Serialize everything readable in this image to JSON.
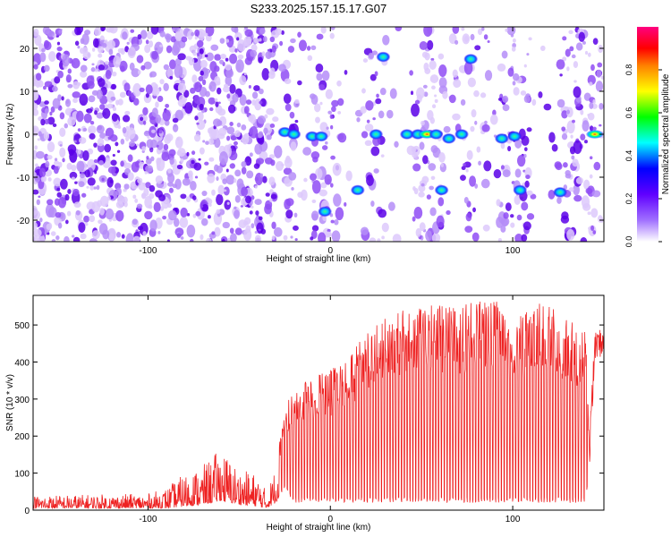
{
  "chart_data": [
    {
      "type": "heatmap",
      "title": "S233.2025.157.15.17.G07",
      "xlabel": "Height of straight line (km)",
      "ylabel": "Frequency (Hz)",
      "xlim": [
        -163,
        150
      ],
      "ylim": [
        -25,
        25
      ],
      "x_ticks": [
        -100,
        0,
        100
      ],
      "y_ticks": [
        -20,
        -10,
        0,
        10,
        20
      ],
      "colorbar": {
        "label": "Normalized spectral amplitude",
        "range": [
          0.0,
          1.0
        ],
        "ticks": [
          "0.0",
          "0.2",
          "0.4",
          "0.6",
          "0.8"
        ],
        "colors": [
          "#ffffff",
          "#8a2be2",
          "#0000ff",
          "#00ffff",
          "#00ff00",
          "#ffff00",
          "#ff0000",
          "#ff0080"
        ]
      },
      "strong_features": [
        {
          "x": -25,
          "y": 0.5,
          "amp": 0.3
        },
        {
          "x": -20,
          "y": 0,
          "amp": 0.25
        },
        {
          "x": -10,
          "y": -0.5,
          "amp": 0.25
        },
        {
          "x": -5,
          "y": -0.5,
          "amp": 0.25
        },
        {
          "x": -3,
          "y": -18,
          "amp": 0.22
        },
        {
          "x": 15,
          "y": -13,
          "amp": 0.2
        },
        {
          "x": 25,
          "y": 0,
          "amp": 0.35
        },
        {
          "x": 29,
          "y": 18,
          "amp": 0.3
        },
        {
          "x": 42,
          "y": 0,
          "amp": 0.3
        },
        {
          "x": 48,
          "y": 0,
          "amp": 0.3
        },
        {
          "x": 53,
          "y": 0,
          "amp": 0.9
        },
        {
          "x": 58,
          "y": 0,
          "amp": 0.3
        },
        {
          "x": 61,
          "y": -13,
          "amp": 0.22
        },
        {
          "x": 65,
          "y": -1,
          "amp": 0.25
        },
        {
          "x": 72,
          "y": 0,
          "amp": 0.3
        },
        {
          "x": 77,
          "y": 17.5,
          "amp": 0.32
        },
        {
          "x": 94,
          "y": -1,
          "amp": 0.28
        },
        {
          "x": 101,
          "y": -0.5,
          "amp": 0.3
        },
        {
          "x": 104,
          "y": -13,
          "amp": 0.22
        },
        {
          "x": 126,
          "y": -13.5,
          "amp": 0.22
        },
        {
          "x": 145,
          "y": 0,
          "amp": 0.95
        }
      ]
    },
    {
      "type": "line",
      "xlabel": "Height of straight line (km)",
      "ylabel": "SNR (10 * v/v)",
      "xlim": [
        -163,
        150
      ],
      "ylim": [
        0,
        580
      ],
      "x_ticks": [
        -100,
        0,
        100
      ],
      "y_ticks": [
        0,
        100,
        200,
        300,
        400,
        500
      ],
      "series": [
        {
          "color": "#ee2222",
          "envelope": [
            {
              "x": -163,
              "low": 5,
              "high": 40
            },
            {
              "x": -100,
              "low": 5,
              "high": 45
            },
            {
              "x": -90,
              "low": 5,
              "high": 60
            },
            {
              "x": -80,
              "low": 10,
              "high": 100
            },
            {
              "x": -70,
              "low": 15,
              "high": 120
            },
            {
              "x": -60,
              "low": 25,
              "high": 170
            },
            {
              "x": -50,
              "low": 15,
              "high": 110
            },
            {
              "x": -40,
              "low": 10,
              "high": 100
            },
            {
              "x": -35,
              "low": 5,
              "high": 50
            },
            {
              "x": -30,
              "low": 20,
              "high": 120
            },
            {
              "x": -25,
              "low": 60,
              "high": 280
            },
            {
              "x": -20,
              "low": 20,
              "high": 330
            },
            {
              "x": -10,
              "low": 20,
              "high": 360
            },
            {
              "x": 0,
              "low": 20,
              "high": 380
            },
            {
              "x": 10,
              "low": 20,
              "high": 420
            },
            {
              "x": 20,
              "low": 20,
              "high": 480
            },
            {
              "x": 30,
              "low": 20,
              "high": 520
            },
            {
              "x": 40,
              "low": 20,
              "high": 540
            },
            {
              "x": 50,
              "low": 20,
              "high": 560
            },
            {
              "x": 60,
              "low": 20,
              "high": 555
            },
            {
              "x": 70,
              "low": 20,
              "high": 550
            },
            {
              "x": 80,
              "low": 20,
              "high": 570
            },
            {
              "x": 90,
              "low": 20,
              "high": 575
            },
            {
              "x": 100,
              "low": 20,
              "high": 510
            },
            {
              "x": 110,
              "low": 20,
              "high": 560
            },
            {
              "x": 120,
              "low": 20,
              "high": 555
            },
            {
              "x": 130,
              "low": 20,
              "high": 520
            },
            {
              "x": 140,
              "low": 20,
              "high": 480
            },
            {
              "x": 142,
              "low": 100,
              "high": 200
            },
            {
              "x": 145,
              "low": 400,
              "high": 480
            },
            {
              "x": 150,
              "low": 420,
              "high": 500
            }
          ]
        }
      ]
    }
  ]
}
